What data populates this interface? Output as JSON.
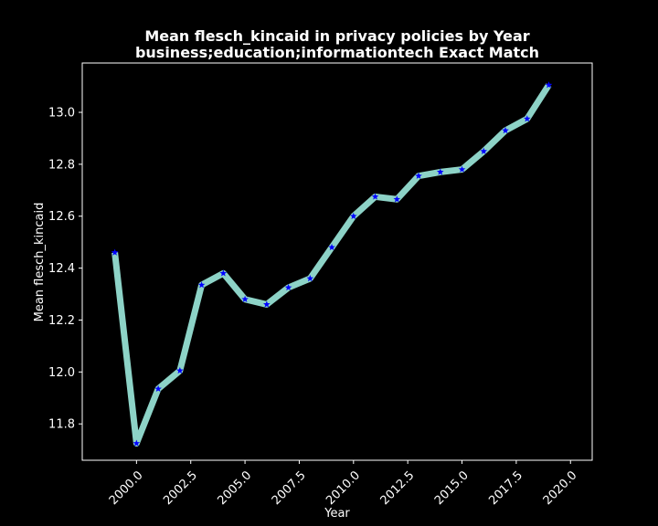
{
  "chart_data": {
    "type": "line",
    "title_lines": [
      "Mean flesch_kincaid in privacy policies by Year",
      "business;education;informationtech Exact Match"
    ],
    "xlabel": "Year",
    "ylabel": "Mean flesch_kincaid",
    "xlim": [
      1997.5,
      2021.0
    ],
    "ylim": [
      11.66,
      13.19
    ],
    "xticks": [
      "2000.0",
      "2002.5",
      "2005.0",
      "2007.5",
      "2010.0",
      "2012.5",
      "2015.0",
      "2017.5",
      "2020.0"
    ],
    "yticks": [
      "11.8",
      "12.0",
      "12.2",
      "12.4",
      "12.6",
      "12.8",
      "13.0"
    ],
    "grid": false,
    "legend": "none",
    "line_color": "#8dd3c7",
    "marker_color": "#0000ff",
    "marker": "star",
    "background": "#000000",
    "foreground": "#ffffff",
    "series": [
      {
        "x": [
          1999,
          2000,
          2001,
          2002,
          2003,
          2004,
          2005,
          2006,
          2007,
          2008,
          2009,
          2010,
          2011,
          2012,
          2013,
          2014,
          2015,
          2016,
          2017,
          2018,
          2019
        ],
        "values": [
          12.46,
          11.725,
          11.935,
          12.005,
          12.335,
          12.38,
          12.28,
          12.26,
          12.325,
          12.36,
          12.48,
          12.6,
          12.675,
          12.665,
          12.755,
          12.77,
          12.78,
          12.85,
          12.93,
          12.975,
          13.105
        ]
      }
    ]
  }
}
